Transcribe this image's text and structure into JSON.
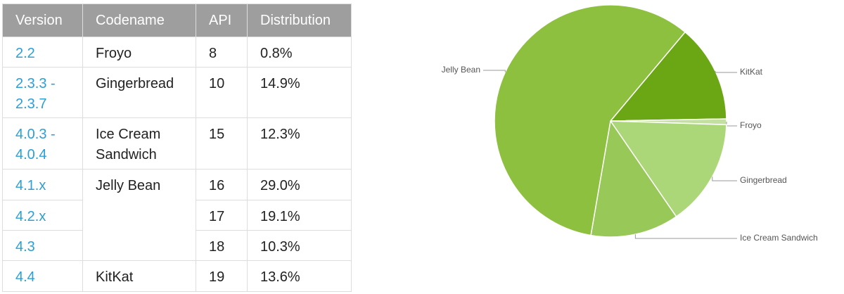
{
  "table": {
    "header": [
      "Version",
      "Codename",
      "API",
      "Distribution"
    ],
    "rows": [
      {
        "version": [
          "2.2"
        ],
        "codename": "Froyo",
        "api": "8",
        "distribution": "0.8%"
      },
      {
        "version": [
          "2.3.3 -",
          "2.3.7"
        ],
        "codename": "Gingerbread",
        "api": "10",
        "distribution": "14.9%"
      },
      {
        "version": [
          "4.0.3 -",
          "4.0.4"
        ],
        "codename": [
          "Ice Cream",
          "Sandwich"
        ],
        "api": "15",
        "distribution": "12.3%"
      },
      {
        "version": [
          "4.1.x"
        ],
        "codename": "Jelly Bean",
        "api": "16",
        "distribution": "29.0%"
      },
      {
        "version": [
          "4.2.x"
        ],
        "api": "17",
        "distribution": "19.1%"
      },
      {
        "version": [
          "4.3"
        ],
        "api": "18",
        "distribution": "10.3%"
      },
      {
        "version": [
          "4.4"
        ],
        "codename": "KitKat",
        "api": "19",
        "distribution": "13.6%"
      }
    ]
  },
  "chart_data": {
    "type": "pie",
    "categories": [
      "KitKat",
      "Froyo",
      "Gingerbread",
      "Ice Cream Sandwich",
      "Jelly Bean"
    ],
    "values": [
      13.6,
      0.8,
      14.9,
      12.3,
      58.4
    ],
    "colors": [
      "#6ba714",
      "#c3e0a0",
      "#acd779",
      "#98c857",
      "#8dc03f"
    ]
  }
}
